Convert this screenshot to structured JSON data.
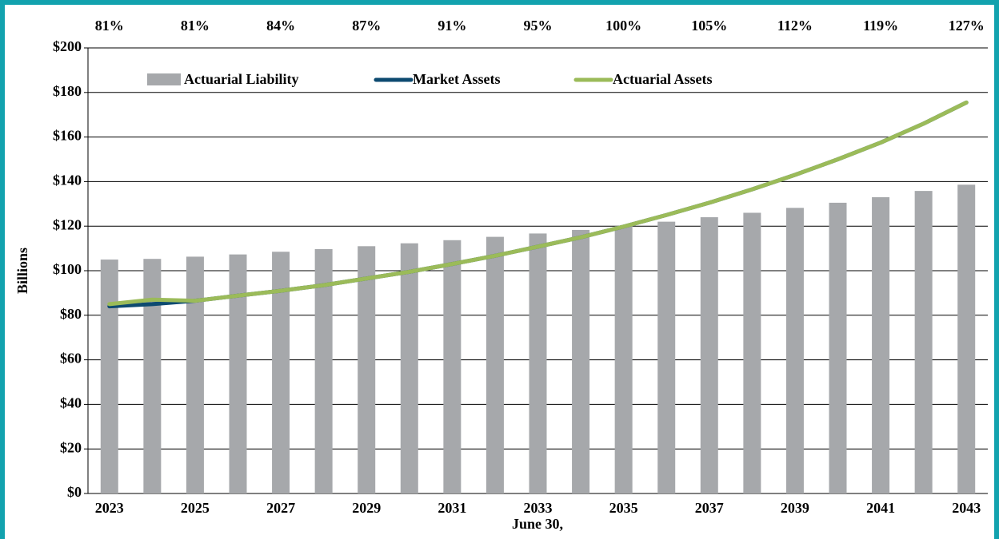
{
  "chart_data": {
    "type": "bar_line",
    "x_label": "June 30,",
    "y_label": "Billions",
    "categories": [
      "2023",
      null,
      "2025",
      null,
      "2027",
      null,
      "2029",
      null,
      "2031",
      null,
      "2033",
      null,
      "2035",
      null,
      "2037",
      null,
      "2039",
      null,
      "2041",
      null,
      "2043"
    ],
    "funded_ratio_labels": [
      "81%",
      "81%",
      "84%",
      "87%",
      "91%",
      "95%",
      "100%",
      "105%",
      "112%",
      "119%",
      "127%"
    ],
    "series": [
      {
        "name": "Actuarial Liability",
        "kind": "bar",
        "color": "#a6a8ab",
        "values": [
          105,
          105.3,
          106.3,
          107.3,
          108.5,
          109.7,
          111,
          112.3,
          113.7,
          115.2,
          116.7,
          118.3,
          120,
          122,
          124,
          126,
          128.2,
          130.5,
          133,
          135.8,
          138.6
        ]
      },
      {
        "name": "Market Assets",
        "kind": "line",
        "color": "#0d4a70",
        "values": [
          84,
          85,
          86.5,
          88.8,
          91,
          93.5,
          96.5,
          99.5,
          103,
          106.7,
          110.8,
          115,
          119.8,
          125,
          130.5,
          136.5,
          143,
          150,
          157.5,
          166,
          175.5
        ]
      },
      {
        "name": "Actuarial Assets",
        "kind": "line",
        "color": "#9bbb59",
        "values": [
          85,
          87,
          86.5,
          88.8,
          91,
          93.5,
          96.5,
          99.5,
          103,
          106.7,
          110.8,
          115,
          119.8,
          125,
          130.5,
          136.5,
          143,
          150,
          157.5,
          166,
          175.5
        ]
      }
    ],
    "ylim": [
      0,
      200
    ],
    "yticks": [
      {
        "value": 0,
        "label": "$0"
      },
      {
        "value": 20,
        "label": "$20"
      },
      {
        "value": 40,
        "label": "$40"
      },
      {
        "value": 60,
        "label": "$60"
      },
      {
        "value": 80,
        "label": "$80"
      },
      {
        "value": 100,
        "label": "$100"
      },
      {
        "value": 120,
        "label": "$120"
      },
      {
        "value": 140,
        "label": "$140"
      },
      {
        "value": 160,
        "label": "$160"
      },
      {
        "value": 180,
        "label": "$180"
      },
      {
        "value": 200,
        "label": "$200"
      }
    ],
    "grid": true
  }
}
